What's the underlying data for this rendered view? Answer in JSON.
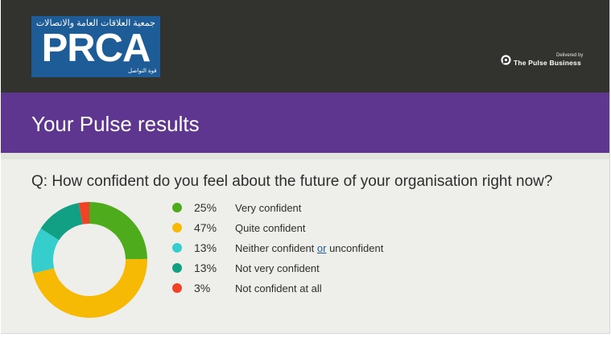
{
  "header": {
    "logo": {
      "arabic_text": "جمعية العلاقات العامة والاتصالات",
      "main_text": "PRCA",
      "arabic_tagline": "قوة التواصل"
    },
    "delivered_by": "Delivered by",
    "brand_name": "The Pulse Business"
  },
  "banner": {
    "title": "Your Pulse results"
  },
  "question": "Q: How confident do you feel about the future of your organisation right now?",
  "legend": [
    {
      "percent": "25%",
      "label": "Very confident",
      "color": "#4eab1c"
    },
    {
      "percent": "47%",
      "label": "Quite confident",
      "color": "#f6ba04"
    },
    {
      "percent": "13%",
      "label_before": "Neither confident ",
      "label_underlined": "or",
      "label_after": " unconfident",
      "color": "#36cdcd"
    },
    {
      "percent": "13%",
      "label": "Not very confident",
      "color": "#11a084"
    },
    {
      "percent": "3%",
      "label": "Not confident at all",
      "color": "#ef4226"
    }
  ],
  "chart_data": {
    "type": "pie",
    "style": "donut",
    "title": "",
    "start": "top, clockwise",
    "categories": [
      "Very confident",
      "Quite confident",
      "Neither confident or unconfident",
      "Not very confident",
      "Not confident at all"
    ],
    "values": [
      25,
      47,
      13,
      13,
      3
    ],
    "unit": "%",
    "colors": [
      "#4eab1c",
      "#f6ba04",
      "#36cdcd",
      "#11a084",
      "#ef4226"
    ]
  }
}
